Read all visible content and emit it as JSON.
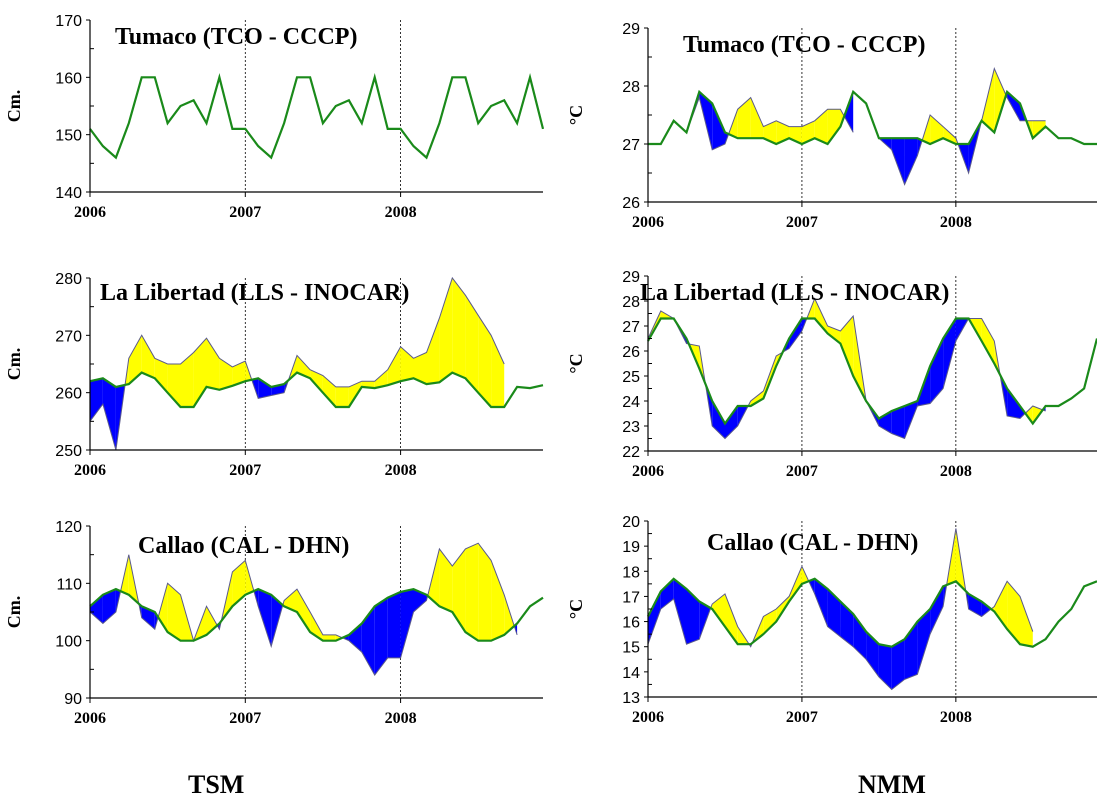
{
  "column_labels": {
    "left": "TSM",
    "right": "NMM"
  },
  "colors": {
    "above": "#ffff00",
    "below": "#0000ff",
    "observed_line": "#5a5a8a",
    "reference_line": "#1a8a1a"
  },
  "chart_data": [
    {
      "type": "area",
      "title": "Tumaco (TCO - CCCP)",
      "ylabel": "Cm.",
      "ylim": [
        140,
        170
      ],
      "yticks": [
        140,
        150,
        160,
        170
      ],
      "xlim": [
        2006,
        2008.917
      ],
      "xtick_labels": [
        "2006",
        "2007",
        "2008"
      ],
      "grid": "dashed year lines",
      "x": [
        2006,
        2006.083,
        2006.167,
        2006.25,
        2006.333,
        2006.417,
        2006.5,
        2006.583,
        2006.667,
        2006.75,
        2006.833,
        2006.917,
        2007,
        2007.083,
        2007.167,
        2007.25,
        2007.333,
        2007.417,
        2007.5,
        2007.583,
        2007.667,
        2007.75,
        2007.833,
        2007.917,
        2008,
        2008.083,
        2008.167,
        2008.25,
        2008.333,
        2008.417,
        2008.5,
        2008.583,
        2008.667,
        2008.75,
        2008.833,
        2008.917
      ],
      "series": [
        {
          "values": [
            151,
            148,
            146,
            152,
            160,
            160,
            152,
            155,
            156,
            152,
            160,
            151,
            151,
            148,
            146,
            152,
            160,
            160,
            152,
            155,
            156,
            152,
            160,
            151,
            151,
            148,
            146,
            152,
            160,
            160,
            152,
            155,
            156,
            152,
            160,
            151
          ]
        },
        {
          "values": [
            151,
            148,
            146,
            152,
            160,
            160,
            152,
            155,
            156,
            152,
            160,
            151,
            151,
            148,
            146,
            152,
            160,
            160,
            152,
            155,
            156,
            152,
            160,
            151,
            151,
            148,
            146,
            152,
            160,
            160,
            152,
            155,
            156,
            152,
            160,
            151
          ]
        }
      ]
    },
    {
      "type": "area",
      "title": "Tumaco (TCO - CCCP)",
      "ylabel": "°C",
      "ylim": [
        26,
        29
      ],
      "yticks": [
        26,
        27,
        28,
        29
      ],
      "xlim": [
        2006,
        2008.917
      ],
      "xtick_labels": [
        "2006",
        "2007",
        "2008"
      ],
      "grid": "dashed year lines",
      "x": [
        2006,
        2006.083,
        2006.167,
        2006.25,
        2006.333,
        2006.417,
        2006.5,
        2006.583,
        2006.667,
        2006.75,
        2006.833,
        2006.917,
        2007,
        2007.083,
        2007.167,
        2007.25,
        2007.333,
        2007.417,
        2007.5,
        2007.583,
        2007.667,
        2007.75,
        2007.833,
        2007.917,
        2008,
        2008.083,
        2008.167,
        2008.25,
        2008.333,
        2008.417,
        2008.5,
        2008.583,
        2008.667,
        2008.75,
        2008.833,
        2008.917
      ],
      "series": [
        {
          "values": [
            27,
            27,
            27.4,
            27.2,
            27.9,
            27.7,
            27.2,
            27.1,
            27.1,
            27.1,
            27,
            27.1,
            27,
            27.1,
            27,
            27.3,
            27.9,
            27.7,
            27.1,
            27.1,
            27.1,
            27.1,
            27,
            27.1,
            27,
            27,
            27.4,
            27.2,
            27.9,
            27.7,
            27.1,
            27.3,
            27.1,
            27.1,
            27,
            27
          ]
        },
        {
          "values": [
            27,
            27,
            27.4,
            27.2,
            27.8,
            26.9,
            27,
            27.6,
            27.8,
            27.3,
            27.4,
            27.3,
            27.3,
            27.4,
            27.6,
            27.6,
            27.2,
            null,
            27.1,
            26.9,
            26.3,
            26.8,
            27.5,
            27.3,
            27.1,
            26.5,
            27.4,
            28.3,
            27.8,
            27.4,
            27.4,
            27.4,
            null,
            null,
            null,
            null
          ]
        }
      ]
    },
    {
      "type": "area",
      "title": "La Libertad (LLS - INOCAR)",
      "ylabel": "Cm.",
      "ylim": [
        250,
        280
      ],
      "yticks": [
        250,
        260,
        270,
        280
      ],
      "xlim": [
        2006,
        2008.917
      ],
      "xtick_labels": [
        "2006",
        "2007",
        "2008"
      ],
      "grid": "dashed year lines",
      "x": [
        2006,
        2006.083,
        2006.167,
        2006.25,
        2006.333,
        2006.417,
        2006.5,
        2006.583,
        2006.667,
        2006.75,
        2006.833,
        2006.917,
        2007,
        2007.083,
        2007.167,
        2007.25,
        2007.333,
        2007.417,
        2007.5,
        2007.583,
        2007.667,
        2007.75,
        2007.833,
        2007.917,
        2008,
        2008.083,
        2008.167,
        2008.25,
        2008.333,
        2008.417,
        2008.5,
        2008.583,
        2008.667,
        2008.75,
        2008.833,
        2008.917
      ],
      "series": [
        {
          "values": [
            262,
            262.5,
            261,
            261.5,
            263.5,
            262.5,
            260,
            257.5,
            257.5,
            261,
            260.5,
            261.2,
            262,
            262.5,
            261,
            261.5,
            263.5,
            262.5,
            260,
            257.5,
            257.5,
            261,
            260.8,
            261.3,
            262,
            262.5,
            261.5,
            261.8,
            263.5,
            262.5,
            260,
            257.5,
            257.5,
            261,
            260.8,
            261.3
          ]
        },
        {
          "values": [
            255,
            258,
            250,
            266,
            270,
            266,
            265,
            265,
            267,
            269.5,
            266,
            264.5,
            265.5,
            259,
            259.5,
            260,
            266.5,
            264,
            263,
            261,
            261,
            262,
            262,
            264,
            268,
            266,
            267,
            273,
            280,
            277,
            273.5,
            270,
            265,
            null,
            null,
            null
          ]
        }
      ]
    },
    {
      "type": "area",
      "title": "La Libertad (LLS - INOCAR)",
      "ylabel": "°C",
      "ylim": [
        22,
        29
      ],
      "yticks": [
        22,
        23,
        24,
        25,
        26,
        27,
        28,
        29
      ],
      "xlim": [
        2006,
        2008.917
      ],
      "xtick_labels": [
        "2006",
        "2007",
        "2008"
      ],
      "grid": "dashed year lines",
      "x": [
        2006,
        2006.083,
        2006.167,
        2006.25,
        2006.333,
        2006.417,
        2006.5,
        2006.583,
        2006.667,
        2006.75,
        2006.833,
        2006.917,
        2007,
        2007.083,
        2007.167,
        2007.25,
        2007.333,
        2007.417,
        2007.5,
        2007.583,
        2007.667,
        2007.75,
        2007.833,
        2007.917,
        2008,
        2008.083,
        2008.167,
        2008.25,
        2008.333,
        2008.417,
        2008.5,
        2008.583,
        2008.667,
        2008.75,
        2008.833,
        2008.917
      ],
      "series": [
        {
          "values": [
            26.4,
            27.3,
            27.3,
            26.5,
            25.3,
            24,
            23.1,
            23.8,
            23.8,
            24.1,
            25.4,
            26.5,
            27.3,
            27.3,
            26.7,
            26.3,
            25,
            24,
            23.3,
            23.6,
            23.8,
            24,
            25.4,
            26.5,
            27.3,
            27.3,
            26.4,
            25.5,
            24.5,
            23.8,
            23.1,
            23.8,
            23.8,
            24.1,
            24.5,
            26.5
          ]
        },
        {
          "values": [
            26.5,
            27.6,
            27.3,
            26.3,
            26.2,
            23,
            22.5,
            23,
            24,
            24.4,
            25.8,
            26.1,
            26.8,
            28.1,
            27,
            26.8,
            27.4,
            24,
            23,
            22.7,
            22.5,
            23.8,
            23.9,
            24.5,
            26.4,
            27.3,
            27.3,
            26.4,
            23.4,
            23.3,
            23.8,
            23.6,
            null,
            null,
            null,
            null
          ]
        }
      ]
    },
    {
      "type": "area",
      "title": "Callao (CAL - DHN)",
      "ylabel": "Cm.",
      "ylim": [
        90,
        120
      ],
      "yticks": [
        90,
        100,
        110,
        120
      ],
      "xlim": [
        2006,
        2008.917
      ],
      "xtick_labels": [
        "2006",
        "2007",
        "2008"
      ],
      "grid": "dashed year lines",
      "x": [
        2006,
        2006.083,
        2006.167,
        2006.25,
        2006.333,
        2006.417,
        2006.5,
        2006.583,
        2006.667,
        2006.75,
        2006.833,
        2006.917,
        2007,
        2007.083,
        2007.167,
        2007.25,
        2007.333,
        2007.417,
        2007.5,
        2007.583,
        2007.667,
        2007.75,
        2007.833,
        2007.917,
        2008,
        2008.083,
        2008.167,
        2008.25,
        2008.333,
        2008.417,
        2008.5,
        2008.583,
        2008.667,
        2008.75,
        2008.833,
        2008.917
      ],
      "series": [
        {
          "values": [
            106,
            108,
            109,
            108,
            106,
            105,
            101.5,
            100,
            100,
            101,
            103,
            106,
            108,
            109,
            108,
            106,
            105,
            101.5,
            100,
            100,
            101,
            103,
            106,
            107.5,
            108.5,
            109,
            108,
            106,
            105,
            101.5,
            100,
            100,
            101,
            103,
            106,
            107.5
          ]
        },
        {
          "values": [
            105,
            103,
            105,
            115,
            104,
            102,
            110,
            108,
            100,
            106,
            102,
            112,
            114,
            106,
            99,
            107,
            109,
            105,
            101,
            101,
            100,
            98,
            94,
            97,
            97,
            105,
            107,
            116,
            113,
            116,
            117,
            114,
            108,
            101,
            null,
            null
          ]
        }
      ]
    },
    {
      "type": "area",
      "title": "Callao (CAL - DHN)",
      "ylabel": "°C",
      "ylim": [
        13,
        20
      ],
      "yticks": [
        13,
        14,
        15,
        16,
        17,
        18,
        19,
        20
      ],
      "xlim": [
        2006,
        2008.917
      ],
      "xtick_labels": [
        "2006",
        "2007",
        "2008"
      ],
      "grid": "dashed year lines",
      "x": [
        2006,
        2006.083,
        2006.167,
        2006.25,
        2006.333,
        2006.417,
        2006.5,
        2006.583,
        2006.667,
        2006.75,
        2006.833,
        2006.917,
        2007,
        2007.083,
        2007.167,
        2007.25,
        2007.333,
        2007.417,
        2007.5,
        2007.583,
        2007.667,
        2007.75,
        2007.833,
        2007.917,
        2008,
        2008.083,
        2008.167,
        2008.25,
        2008.333,
        2008.417,
        2008.5,
        2008.583,
        2008.667,
        2008.75,
        2008.833,
        2008.917
      ],
      "series": [
        {
          "values": [
            16.2,
            17.2,
            17.7,
            17.3,
            16.8,
            16.5,
            15.8,
            15.1,
            15.1,
            15.5,
            16,
            16.8,
            17.5,
            17.7,
            17.3,
            16.8,
            16.3,
            15.6,
            15.1,
            15,
            15.3,
            16,
            16.5,
            17.4,
            17.6,
            17.1,
            16.8,
            16.4,
            15.7,
            15.1,
            15,
            15.3,
            16,
            16.5,
            17.4,
            17.6
          ]
        },
        {
          "values": [
            15.1,
            16.5,
            16.9,
            15.1,
            15.3,
            16.7,
            17.1,
            15.8,
            15,
            16.2,
            16.5,
            17,
            18.2,
            17.1,
            15.8,
            15.4,
            15,
            14.5,
            13.8,
            13.3,
            13.7,
            13.9,
            15.5,
            16.6,
            19.7,
            16.5,
            16.2,
            16.6,
            17.6,
            17,
            15.6,
            null,
            null,
            null,
            null,
            null
          ]
        }
      ]
    }
  ]
}
